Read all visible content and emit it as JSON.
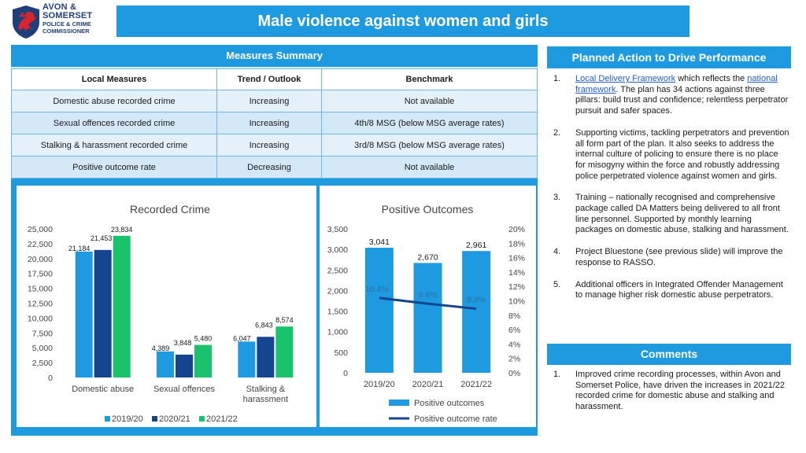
{
  "logo": {
    "line1": "AVON &",
    "line2": "SOMERSET",
    "line3": "POLICE & CRIME",
    "line4": "COMMISSIONER"
  },
  "title": "Male violence against women and girls",
  "measures": {
    "heading": "Measures Summary",
    "columns": [
      "Local Measures",
      "Trend / Outlook",
      "Benchmark"
    ],
    "rows": [
      [
        "Domestic abuse recorded crime",
        "Increasing",
        "Not available"
      ],
      [
        "Sexual offences recorded crime",
        "Increasing",
        "4th/8 MSG (below MSG average rates)"
      ],
      [
        "Stalking & harassment recorded crime",
        "Increasing",
        "3rd/8 MSG (below MSG average rates)"
      ],
      [
        "Positive outcome rate",
        "Decreasing",
        "Not available"
      ]
    ]
  },
  "chart_data": [
    {
      "type": "bar",
      "title": "Recorded Crime",
      "categories": [
        "Domestic abuse",
        "Sexual offences",
        "Stalking & harassment"
      ],
      "category_lines": [
        [
          "Domestic abuse"
        ],
        [
          "Sexual offences"
        ],
        [
          "Stalking &",
          "harassment"
        ]
      ],
      "series": [
        {
          "name": "2019/20",
          "values": [
            21184,
            4389,
            6047
          ],
          "color": "#1e9be0",
          "label_color": "#1a1a1a"
        },
        {
          "name": "2020/21",
          "values": [
            21453,
            3848,
            6843
          ],
          "color": "#15458e",
          "label_color": "#1a1a1a"
        },
        {
          "name": "2021/22",
          "values": [
            23834,
            5480,
            8574
          ],
          "color": "#19c36b",
          "label_color": "#1a1a1a"
        }
      ],
      "value_labels": [
        [
          "21,184",
          "4,389",
          "6,047"
        ],
        [
          "21,453",
          "3,848",
          "6,843"
        ],
        [
          "23,834",
          "5,480",
          "8,574"
        ]
      ],
      "ylim": [
        0,
        25000
      ],
      "yticks": [
        "0",
        "2,500",
        "5,000",
        "7,500",
        "10,000",
        "12,500",
        "15,000",
        "17,500",
        "20,000",
        "22,500",
        "25,000"
      ],
      "legend_position": "bottom",
      "grid": false
    },
    {
      "type": "bar",
      "title": "Positive Outcomes",
      "categories": [
        "2019/20",
        "2020/21",
        "2021/22"
      ],
      "series": [
        {
          "name": "Positive outcomes",
          "type": "bar",
          "axis": "left",
          "values": [
            3041,
            2670,
            2961
          ],
          "color": "#1e9be0",
          "labels": [
            "3,041",
            "2,670",
            "2,961"
          ]
        },
        {
          "name": "Positive outcome rate",
          "type": "line",
          "axis": "right",
          "values": [
            10.4,
            9.6,
            8.9
          ],
          "color": "#15458e",
          "labels": [
            "10.4%",
            "9.6%",
            "8.9%"
          ]
        }
      ],
      "ylim": [
        0,
        3500
      ],
      "yticks": [
        "0",
        "500",
        "1,000",
        "1,500",
        "2,000",
        "2,500",
        "3,000",
        "3,500"
      ],
      "y2lim": [
        0,
        20
      ],
      "y2ticks": [
        "0%",
        "2%",
        "4%",
        "6%",
        "8%",
        "10%",
        "12%",
        "14%",
        "16%",
        "18%",
        "20%"
      ],
      "legend_position": "bottom",
      "grid": false
    }
  ],
  "planned": {
    "heading": "Planned Action to Drive Performance",
    "items": [
      {
        "num": "1.",
        "link1": "Local Delivery Framework",
        "text1": " which reflects the ",
        "link2": "national framework",
        "text2": ". The plan has 34 actions against three pillars: build trust and confidence; relentless perpetrator pursuit and safer spaces."
      },
      {
        "num": "2.",
        "text": "Supporting victims, tackling perpetrators and prevention all form part of the plan. It also seeks to address the internal culture of policing to ensure there is no place for misogyny within the force and robustly addressing police perpetrated violence against women and girls."
      },
      {
        "num": "3.",
        "text": "Training – nationally recognised and comprehensive package called DA Matters being delivered to all front line personnel. Supported by monthly learning packages on domestic abuse, stalking and harassment."
      },
      {
        "num": "4.",
        "text": "Project Bluestone (see previous slide) will improve the response to RASSO."
      },
      {
        "num": "5.",
        "text": "Additional officers in Integrated Offender Management to manage higher risk domestic abuse perpetrators."
      }
    ]
  },
  "comments": {
    "heading": "Comments",
    "items": [
      {
        "num": "1.",
        "text": "Improved crime recording processes, within Avon and Somerset Police, have driven the increases in 2021/22 recorded crime for domestic abuse and stalking and harassment."
      }
    ]
  },
  "colors": {
    "accent": "#1e9be0",
    "dark_blue": "#15458e",
    "green": "#19c36b",
    "table_bg": "#ddeefb",
    "link": "#1f5fd1",
    "logo_red": "#d9232e"
  },
  "icons": {
    "crest": "red-dragon-crest"
  }
}
